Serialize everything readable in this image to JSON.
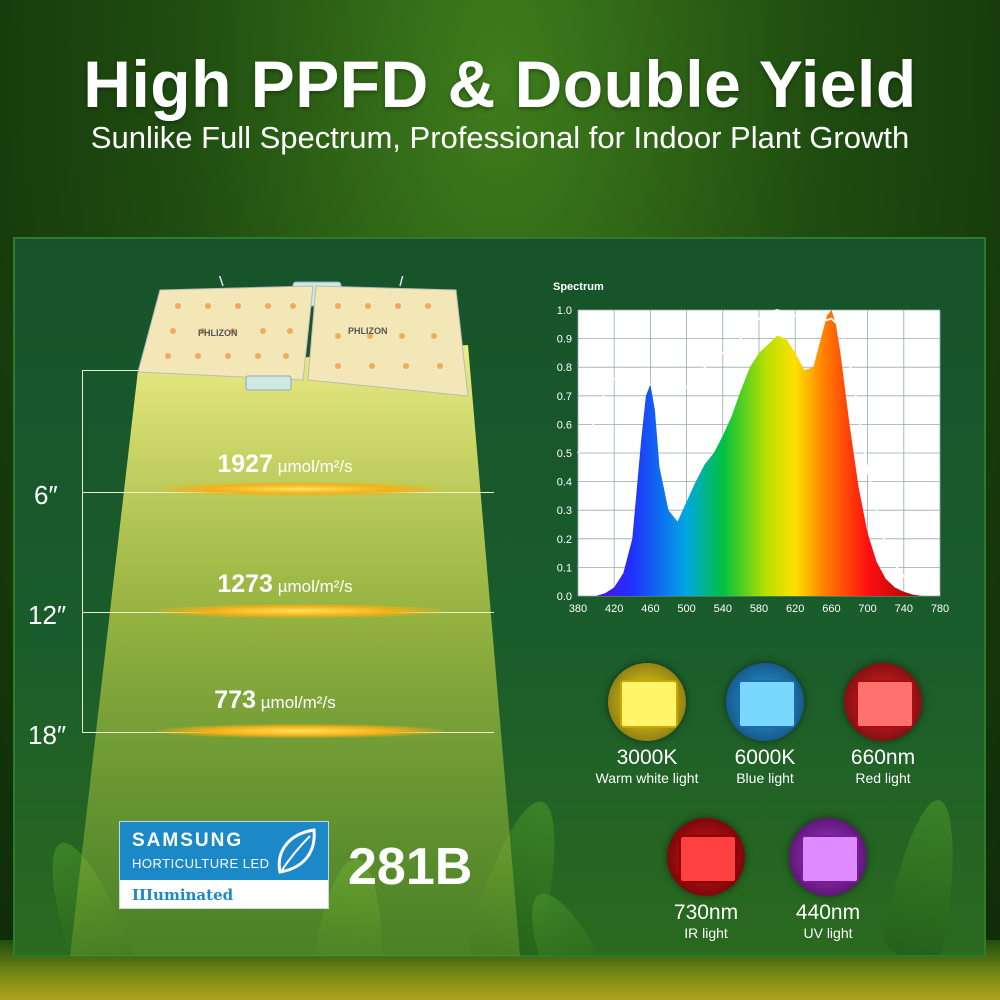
{
  "headline": "High PPFD & Double Yield",
  "subtitle": "Sunlike Full Spectrum, Professional for Indoor Plant Growth",
  "measurements": [
    {
      "distance": "6″",
      "value": "1927",
      "unit": "µmol/m²/s"
    },
    {
      "distance": "12″",
      "value": "1273",
      "unit": "µmol/m²/s"
    },
    {
      "distance": "18″",
      "value": "773",
      "unit": "µmol/m²/s"
    }
  ],
  "chart_data": {
    "type": "area",
    "title": "Spectrum",
    "xlabel": "",
    "ylabel": "",
    "xlim": [
      380,
      780
    ],
    "ylim": [
      0.0,
      1.0
    ],
    "x_ticks": [
      "380",
      "420",
      "460",
      "500",
      "540",
      "580",
      "620",
      "660",
      "700",
      "740",
      "780"
    ],
    "y_ticks": [
      "0.0",
      "0.1",
      "0.2",
      "0.3",
      "0.4",
      "0.5",
      "0.6",
      "0.7",
      "0.8",
      "0.9",
      "1.0"
    ],
    "grid": true,
    "series": [
      {
        "values_x": [
          380,
          400,
          410,
          420,
          430,
          440,
          450,
          455,
          460,
          465,
          470,
          480,
          490,
          500,
          510,
          520,
          530,
          540,
          550,
          560,
          570,
          580,
          590,
          600,
          610,
          620,
          630,
          640,
          650,
          655,
          660,
          665,
          670,
          680,
          690,
          700,
          710,
          720,
          730,
          740,
          750,
          760,
          780
        ],
        "values_y": [
          0,
          0,
          0.01,
          0.03,
          0.08,
          0.2,
          0.55,
          0.7,
          0.74,
          0.65,
          0.45,
          0.3,
          0.26,
          0.33,
          0.4,
          0.46,
          0.5,
          0.56,
          0.63,
          0.72,
          0.8,
          0.85,
          0.88,
          0.91,
          0.9,
          0.85,
          0.79,
          0.8,
          0.92,
          0.98,
          1.0,
          0.95,
          0.85,
          0.6,
          0.38,
          0.22,
          0.12,
          0.06,
          0.03,
          0.015,
          0.005,
          0,
          0
        ]
      },
      {
        "values_x": [
          380,
          390,
          400,
          410,
          420,
          430,
          440,
          450,
          460,
          470,
          480,
          490,
          500,
          510,
          520,
          530,
          540,
          550,
          560,
          570,
          580,
          590,
          600,
          610,
          620,
          630,
          640,
          650,
          660,
          670,
          680,
          690,
          700,
          710,
          720,
          730,
          740,
          750,
          760,
          770,
          780
        ],
        "values_y": [
          0.5,
          0.55,
          0.62,
          0.72,
          0.76,
          0.77,
          0.76,
          0.75,
          0.74,
          0.72,
          0.71,
          0.72,
          0.73,
          0.76,
          0.8,
          0.83,
          0.85,
          0.87,
          0.9,
          0.94,
          0.97,
          0.99,
          1.0,
          0.99,
          0.98,
          0.98,
          0.97,
          0.96,
          0.97,
          0.94,
          0.82,
          0.64,
          0.44,
          0.3,
          0.18,
          0.11,
          0.07,
          0.04,
          0.02,
          0.01,
          0.01
        ]
      }
    ]
  },
  "lights": [
    {
      "label": "3000K",
      "sub": "Warm white light",
      "color": "#f5e21c"
    },
    {
      "label": "6000K",
      "sub": "Blue light",
      "color": "#27a8e6"
    },
    {
      "label": "660nm",
      "sub": "Red light",
      "color": "#ee2428"
    },
    {
      "label": "730nm",
      "sub": "IR light",
      "color": "#e4141c"
    },
    {
      "label": "440nm",
      "sub": "UV light",
      "color": "#b33ad8"
    }
  ],
  "badge": {
    "brand": "SAMSUNG",
    "line2": "HORTICULTURE LED",
    "line3": "IIIuminated"
  },
  "model": "281B",
  "lamp": {
    "brand": "PHLIZON"
  }
}
